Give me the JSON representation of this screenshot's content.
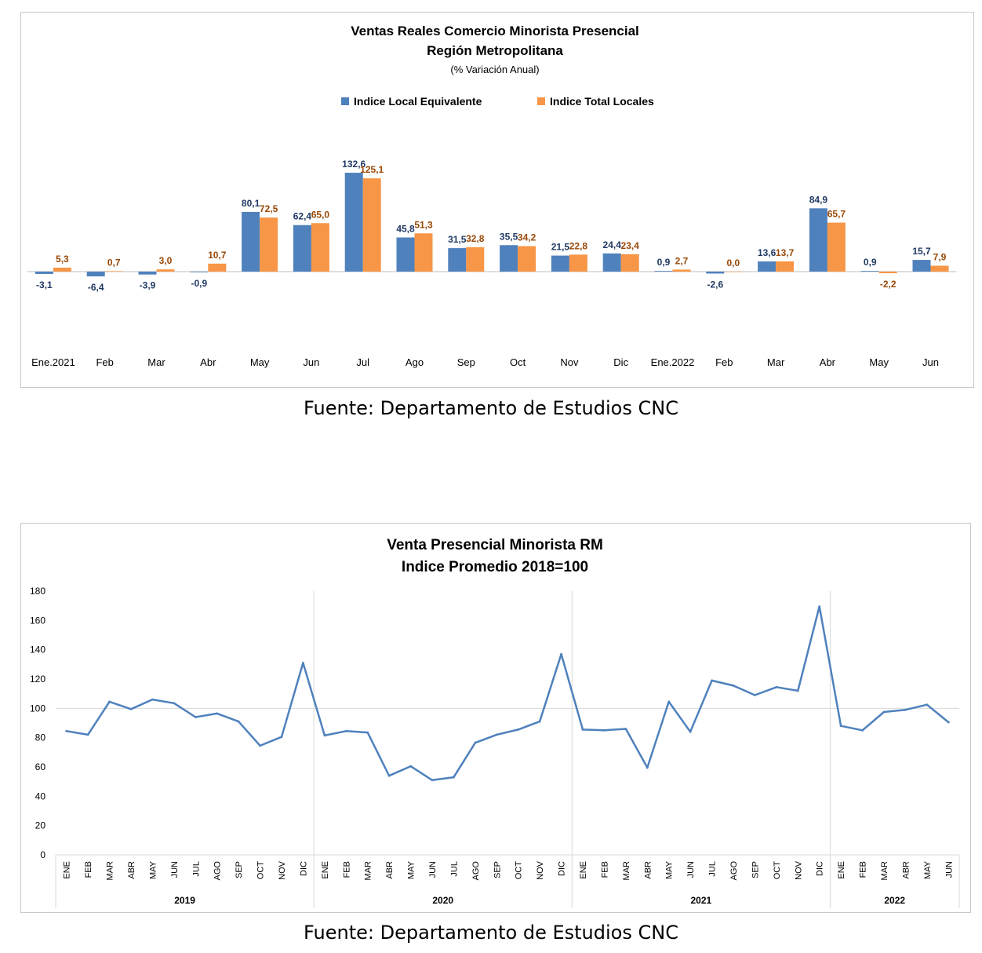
{
  "chart_data": [
    {
      "type": "bar",
      "title": "Ventas Reales Comercio Minorista Presencial",
      "subtitle": "Región Metropolitana",
      "note": "(% Variación Anual)",
      "legend_position": "top",
      "categories": [
        "Ene.2021",
        "Feb",
        "Mar",
        "Abr",
        "May",
        "Jun",
        "Jul",
        "Ago",
        "Sep",
        "Oct",
        "Nov",
        "Dic",
        "Ene.2022",
        "Feb",
        "Mar",
        "Abr",
        "May",
        "Jun"
      ],
      "series": [
        {
          "name": "Indice Local Equivalente",
          "color": "#4f81bd",
          "label_color": "#1f3864",
          "values": [
            -3.1,
            -6.4,
            -3.9,
            -0.9,
            80.1,
            62.4,
            132.6,
            45.8,
            31.5,
            35.5,
            21.5,
            24.4,
            0.9,
            -2.6,
            13.6,
            84.9,
            0.9,
            15.7
          ],
          "labels": [
            "-3,1",
            "-6,4",
            "-3,9",
            "-0,9",
            "80,1",
            "62,4",
            "132,6",
            "45,8",
            "31,5",
            "35,5",
            "21,5",
            "24,4",
            "0,9",
            "-2,6",
            "13,6",
            "84,9",
            "0,9",
            "15,7"
          ]
        },
        {
          "name": "Indice Total Locales",
          "color": "#f79646",
          "label_color": "#984807",
          "values": [
            5.3,
            0.7,
            3.0,
            10.7,
            72.5,
            65.0,
            125.1,
            51.3,
            32.8,
            34.2,
            22.8,
            23.4,
            2.7,
            0.0,
            13.7,
            65.7,
            -2.2,
            7.9
          ],
          "labels": [
            "5,3",
            "0,7",
            "3,0",
            "10,7",
            "72,5",
            "65,0",
            "125,1",
            "51,3",
            "32,8",
            "34,2",
            "22,8",
            "23,4",
            "2,7",
            "0,0",
            "13,7",
            "65,7",
            "-2,2",
            "7,9"
          ]
        }
      ],
      "source": "Fuente: Departamento de Estudios CNC"
    },
    {
      "type": "line",
      "title": "Venta Presencial Minorista RM",
      "subtitle": "Indice Promedio 2018=100",
      "ylim": [
        0,
        180
      ],
      "yticks": [
        0,
        20,
        40,
        60,
        80,
        100,
        120,
        140,
        160,
        180
      ],
      "reference_line": 100,
      "color": "#4f81bd",
      "groups": [
        {
          "name": "2019",
          "months": [
            "ENE",
            "FEB",
            "MAR",
            "ABR",
            "MAY",
            "JUN",
            "JUL",
            "AGO",
            "SEP",
            "OCT",
            "NOV",
            "DIC"
          ]
        },
        {
          "name": "2020",
          "months": [
            "ENE",
            "FEB",
            "MAR",
            "ABR",
            "MAY",
            "JUN",
            "JUL",
            "AGO",
            "SEP",
            "OCT",
            "NOV",
            "DIC"
          ]
        },
        {
          "name": "2021",
          "months": [
            "ENE",
            "FEB",
            "MAR",
            "ABR",
            "MAY",
            "JUN",
            "JUL",
            "AGO",
            "SEP",
            "OCT",
            "NOV",
            "DIC"
          ]
        },
        {
          "name": "2022",
          "months": [
            "ENE",
            "FEB",
            "MAR",
            "ABR",
            "MAY",
            "JUN"
          ]
        }
      ],
      "values": [
        84.5,
        82,
        104.5,
        99.5,
        106,
        103.5,
        94,
        96.5,
        91,
        74.5,
        80.5,
        131,
        81.5,
        84.5,
        83.5,
        54,
        60.5,
        51,
        53,
        76.5,
        82,
        85.5,
        91,
        137,
        85.5,
        85,
        86,
        59.5,
        104.5,
        84,
        119,
        115.5,
        109,
        114.5,
        112,
        169.5,
        88,
        85,
        97.5,
        99,
        102.5,
        90.5
      ],
      "source": "Fuente: Departamento de Estudios CNC"
    }
  ]
}
